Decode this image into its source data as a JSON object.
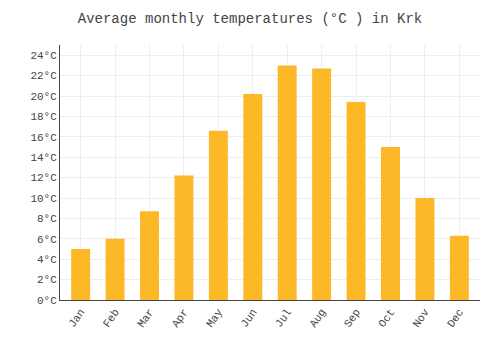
{
  "chart_data": {
    "type": "bar",
    "title": "Average monthly temperatures (°C ) in Krk",
    "categories": [
      "Jan",
      "Feb",
      "Mar",
      "Apr",
      "May",
      "Jun",
      "Jul",
      "Aug",
      "Sep",
      "Oct",
      "Nov",
      "Dec"
    ],
    "values": [
      5.0,
      6.0,
      8.7,
      12.2,
      16.6,
      20.2,
      23.0,
      22.7,
      19.4,
      15.0,
      10.0,
      6.3
    ],
    "color": "#FDB827",
    "ylim": [
      0,
      25
    ],
    "yticks": [
      {
        "value": 0,
        "label": "0°C"
      },
      {
        "value": 2,
        "label": "2°C"
      },
      {
        "value": 4,
        "label": "4°C"
      },
      {
        "value": 6,
        "label": "6°C"
      },
      {
        "value": 8,
        "label": "8°C"
      },
      {
        "value": 10,
        "label": "10°C"
      },
      {
        "value": 12,
        "label": "12°C"
      },
      {
        "value": 14,
        "label": "14°C"
      },
      {
        "value": 16,
        "label": "16°C"
      },
      {
        "value": 18,
        "label": "18°C"
      },
      {
        "value": 20,
        "label": "20°C"
      },
      {
        "value": 22,
        "label": "22°C"
      },
      {
        "value": 24,
        "label": "24°C"
      }
    ],
    "grid": true
  }
}
